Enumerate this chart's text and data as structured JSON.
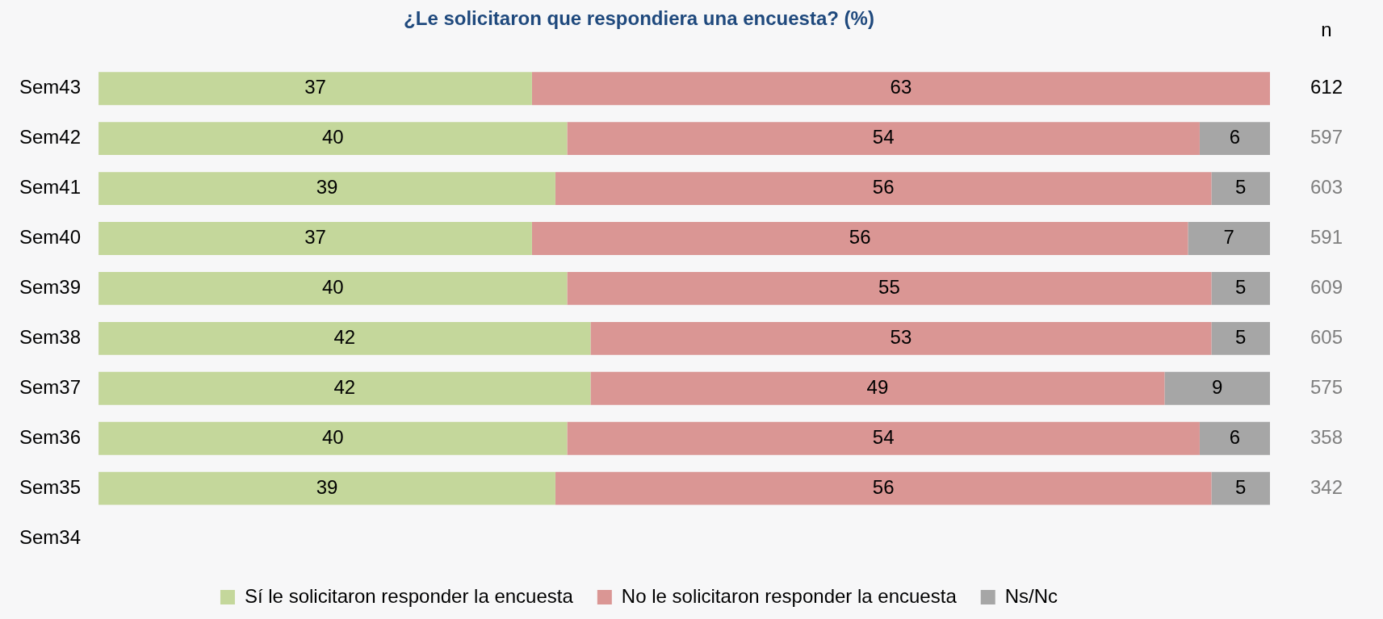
{
  "chart_data": {
    "type": "bar",
    "orientation": "horizontal",
    "stacked": true,
    "title": "¿Le solicitaron que respondiera una encuesta? (%)",
    "categories": [
      "Sem43",
      "Sem42",
      "Sem41",
      "Sem40",
      "Sem39",
      "Sem38",
      "Sem37",
      "Sem36",
      "Sem35",
      "Sem34"
    ],
    "series": [
      {
        "name": "Sí le solicitaron responder la encuesta",
        "color": "#c4d79b",
        "values": [
          37,
          40,
          39,
          37,
          40,
          42,
          42,
          40,
          39,
          null
        ]
      },
      {
        "name": "No le solicitaron responder la encuesta",
        "color": "#da9694",
        "values": [
          63,
          54,
          56,
          56,
          55,
          53,
          49,
          54,
          56,
          null
        ]
      },
      {
        "name": "Ns/Nc",
        "color": "#a6a6a6",
        "values": [
          null,
          6,
          5,
          7,
          5,
          5,
          9,
          6,
          5,
          null
        ]
      }
    ],
    "xlim": [
      0,
      100
    ],
    "tick_labels": "y",
    "data_labels": true,
    "grid": false,
    "legend": "bottom",
    "annotations": [
      "n",
      "612",
      "597",
      "603",
      "591",
      "609",
      "605",
      "575",
      "358",
      "342"
    ]
  }
}
